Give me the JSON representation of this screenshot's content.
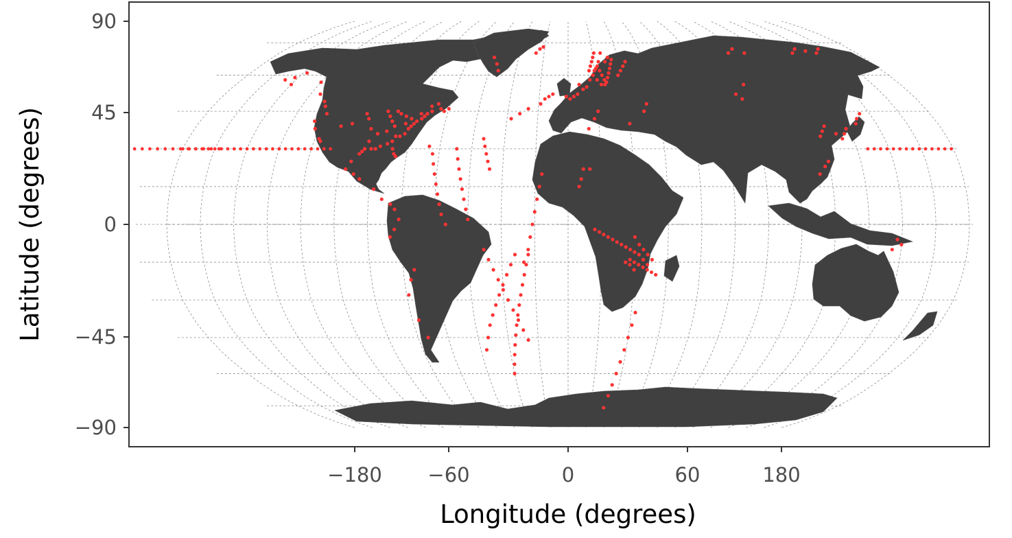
{
  "chart_data": {
    "type": "scatter",
    "projection": "Robinson",
    "xlabel": "Longitude (degrees)",
    "ylabel": "Latitude (degrees)",
    "x_ticks": [
      "−180",
      "−60",
      "0",
      "60",
      "180"
    ],
    "y_ticks": [
      "90",
      "45",
      "0",
      "−45",
      "−90"
    ],
    "grid": "dashed",
    "colors": {
      "land": "#404040",
      "points": "#ff3333",
      "grid": "#8c8c8c",
      "panel_border": "#333333",
      "background": "#ffffff"
    },
    "series": [
      {
        "points": [
          [
            -150,
            56
          ],
          [
            -152,
            59
          ],
          [
            -148,
            61
          ],
          [
            -156,
            58
          ],
          [
            -135,
            57
          ],
          [
            -130,
            52
          ],
          [
            -125,
            49
          ],
          [
            -123,
            47
          ],
          [
            -122,
            38
          ],
          [
            -118,
            34
          ],
          [
            -117,
            33
          ],
          [
            -124,
            41
          ],
          [
            -120,
            44
          ],
          [
            -110,
            39
          ],
          [
            -105,
            40
          ],
          [
            -100,
            44
          ],
          [
            -98,
            42
          ],
          [
            -95,
            38
          ],
          [
            -90,
            45
          ],
          [
            -88,
            43
          ],
          [
            -85,
            45
          ],
          [
            -83,
            44
          ],
          [
            -80,
            43
          ],
          [
            -95,
            30
          ],
          [
            -92,
            30
          ],
          [
            -90,
            30
          ],
          [
            -88,
            31
          ],
          [
            -85,
            32
          ],
          [
            -83,
            33
          ],
          [
            -82,
            35
          ],
          [
            -80,
            35
          ],
          [
            -78,
            36
          ],
          [
            -77,
            38
          ],
          [
            -76,
            39
          ],
          [
            -75,
            40
          ],
          [
            -74,
            41
          ],
          [
            -72,
            42
          ],
          [
            -71,
            43
          ],
          [
            -70,
            44
          ],
          [
            -68,
            45
          ],
          [
            -81,
            28
          ],
          [
            -80,
            27
          ],
          [
            -82,
            30
          ],
          [
            -97,
            28
          ],
          [
            -96,
            29
          ],
          [
            -94,
            33
          ],
          [
            -91,
            36
          ],
          [
            -87,
            37
          ],
          [
            -84,
            39
          ],
          [
            -86,
            41
          ],
          [
            -79,
            40
          ],
          [
            -77,
            42
          ],
          [
            -73,
            44
          ],
          [
            -69,
            47
          ],
          [
            -66,
            48
          ],
          [
            -64,
            46
          ],
          [
            -62,
            45
          ],
          [
            -60,
            46
          ],
          [
            -100,
            25
          ],
          [
            -102,
            22
          ],
          [
            -98,
            20
          ],
          [
            -95,
            18
          ],
          [
            -88,
            14
          ],
          [
            -84,
            10
          ],
          [
            -80,
            8
          ],
          [
            -78,
            6
          ],
          [
            -76,
            2
          ],
          [
            -78,
            -2
          ],
          [
            -80,
            -5
          ],
          [
            -70,
            -18
          ],
          [
            -72,
            -22
          ],
          [
            -74,
            -28
          ],
          [
            -72,
            -38
          ],
          [
            -70,
            -45
          ],
          [
            -65,
            31
          ],
          [
            -63,
            28
          ],
          [
            -62,
            24
          ],
          [
            -61,
            20
          ],
          [
            -60,
            16
          ],
          [
            -59,
            12
          ],
          [
            -58,
            8
          ],
          [
            -57,
            4
          ],
          [
            -55,
            0
          ],
          [
            -52,
            30
          ],
          [
            -51,
            26
          ],
          [
            -50,
            22
          ],
          [
            -49,
            18
          ],
          [
            -48,
            14
          ],
          [
            -47,
            10
          ],
          [
            -46,
            6
          ],
          [
            -45,
            2
          ],
          [
            -40,
            34
          ],
          [
            -39,
            31
          ],
          [
            -38,
            28
          ],
          [
            -37,
            25
          ],
          [
            -36,
            22
          ],
          [
            -38,
            -10
          ],
          [
            -36,
            -14
          ],
          [
            -34,
            -18
          ],
          [
            -32,
            -22
          ],
          [
            -30,
            -26
          ],
          [
            -28,
            -30
          ],
          [
            -26,
            -34
          ],
          [
            -24,
            -38
          ],
          [
            -22,
            -42
          ],
          [
            -20,
            -46
          ],
          [
            -42,
            -50
          ],
          [
            -40,
            -45
          ],
          [
            -38,
            -40
          ],
          [
            -36,
            -36
          ],
          [
            -34,
            -32
          ],
          [
            -32,
            -28
          ],
          [
            -30,
            -24
          ],
          [
            -28,
            -20
          ],
          [
            -26,
            -16
          ],
          [
            -24,
            -12
          ],
          [
            -30,
            -60
          ],
          [
            -29,
            -56
          ],
          [
            -28,
            -52
          ],
          [
            -27,
            -48
          ],
          [
            -26,
            -44
          ],
          [
            -25,
            -40
          ],
          [
            -24,
            -36
          ],
          [
            -23,
            -32
          ],
          [
            -22,
            -28
          ],
          [
            -21,
            -24
          ],
          [
            -20,
            -20
          ],
          [
            -19,
            -16
          ],
          [
            -18,
            -12
          ],
          [
            -20,
            -15
          ],
          [
            -18,
            -10
          ],
          [
            -17,
            -5
          ],
          [
            -16,
            0
          ],
          [
            -15,
            5
          ],
          [
            -14,
            10
          ],
          [
            -13,
            15
          ],
          [
            -12,
            20
          ],
          [
            -14,
            48
          ],
          [
            -12,
            50
          ],
          [
            -10,
            51
          ],
          [
            -8,
            52
          ],
          [
            -20,
            46
          ],
          [
            -24,
            44
          ],
          [
            -28,
            42
          ],
          [
            -40,
            62
          ],
          [
            -42,
            65
          ],
          [
            -45,
            68
          ],
          [
            -20,
            70
          ],
          [
            -18,
            72
          ],
          [
            -16,
            73
          ],
          [
            5,
            15
          ],
          [
            6,
            18
          ],
          [
            7,
            22
          ],
          [
            10,
            22
          ],
          [
            12,
            58
          ],
          [
            14,
            60
          ],
          [
            15,
            62
          ],
          [
            16,
            63
          ],
          [
            17,
            64
          ],
          [
            18,
            62
          ],
          [
            19,
            60
          ],
          [
            20,
            58
          ],
          [
            21,
            57
          ],
          [
            22,
            59
          ],
          [
            23,
            61
          ],
          [
            24,
            63
          ],
          [
            25,
            65
          ],
          [
            26,
            67
          ],
          [
            12,
            62
          ],
          [
            13,
            64
          ],
          [
            14,
            66
          ],
          [
            15,
            68
          ],
          [
            16,
            70
          ],
          [
            20,
            70
          ],
          [
            24,
            68
          ],
          [
            22,
            66
          ],
          [
            18,
            66
          ],
          [
            16,
            58
          ],
          [
            18,
            56
          ],
          [
            20,
            56
          ],
          [
            28,
            60
          ],
          [
            30,
            62
          ],
          [
            32,
            64
          ],
          [
            34,
            66
          ],
          [
            8,
            54
          ],
          [
            10,
            55
          ],
          [
            6,
            56
          ],
          [
            5,
            52
          ],
          [
            3,
            51
          ],
          [
            1,
            50
          ],
          [
            -1,
            51
          ],
          [
            15,
            45
          ],
          [
            13,
            42
          ],
          [
            10,
            38
          ],
          [
            30,
            40
          ],
          [
            38,
            45
          ],
          [
            40,
            48
          ],
          [
            12,
            -2
          ],
          [
            14,
            -3
          ],
          [
            16,
            -4
          ],
          [
            18,
            -5
          ],
          [
            20,
            -6
          ],
          [
            22,
            -7
          ],
          [
            24,
            -8
          ],
          [
            26,
            -9
          ],
          [
            28,
            -10
          ],
          [
            30,
            -11
          ],
          [
            32,
            -12
          ],
          [
            28,
            -14
          ],
          [
            30,
            -15
          ],
          [
            32,
            -16
          ],
          [
            34,
            -17
          ],
          [
            36,
            -18
          ],
          [
            38,
            -19
          ],
          [
            40,
            -20
          ],
          [
            30,
            -18
          ],
          [
            28,
            -16
          ],
          [
            26,
            -15
          ],
          [
            34,
            -14
          ],
          [
            36,
            -16
          ],
          [
            32,
            -35
          ],
          [
            31,
            -40
          ],
          [
            30,
            -45
          ],
          [
            29,
            -50
          ],
          [
            28,
            -55
          ],
          [
            27,
            -60
          ],
          [
            26,
            -65
          ],
          [
            25,
            -70
          ],
          [
            24,
            -76
          ],
          [
            88,
            52
          ],
          [
            90,
            50
          ],
          [
            95,
            56
          ],
          [
            100,
            70
          ],
          [
            110,
            70
          ],
          [
            105,
            72
          ],
          [
            140,
            70
          ],
          [
            145,
            72
          ],
          [
            150,
            71
          ],
          [
            155,
            70
          ],
          [
            160,
            72
          ],
          [
            120,
            35
          ],
          [
            122,
            37
          ],
          [
            124,
            39
          ],
          [
            128,
            36
          ],
          [
            130,
            34
          ],
          [
            132,
            36
          ],
          [
            134,
            38
          ],
          [
            140,
            40
          ],
          [
            142,
            42
          ],
          [
            145,
            44
          ],
          [
            115,
            20
          ],
          [
            118,
            23
          ],
          [
            120,
            25
          ],
          [
            148,
            -6
          ],
          [
            150,
            -8
          ],
          [
            146,
            -10
          ],
          [
            30,
            -5
          ],
          [
            32,
            -8
          ],
          [
            34,
            -10
          ],
          [
            36,
            -12
          ],
          [
            38,
            -14
          ]
        ]
      }
    ],
    "pacific_track": {
      "latitude": 30,
      "lon_ranges": [
        [
          -180,
          -110
        ],
        [
          140,
          180
        ]
      ]
    }
  }
}
